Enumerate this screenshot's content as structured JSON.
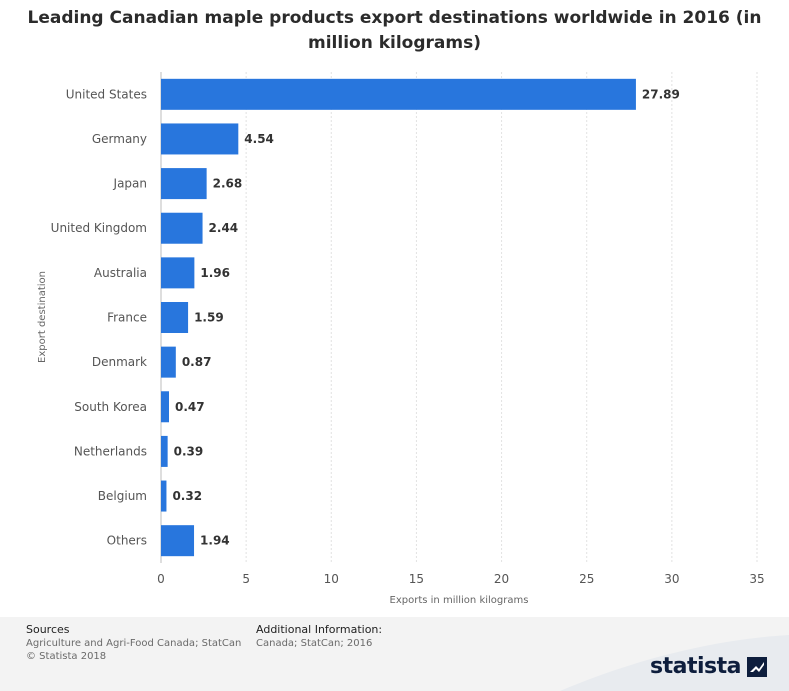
{
  "title_line1": "Leading Canadian maple products export destinations worldwide in 2016 (in",
  "title_line2": "million kilograms)",
  "chart_data": {
    "type": "bar",
    "orientation": "horizontal",
    "title": "Leading Canadian maple products export destinations worldwide in 2016 (in million kilograms)",
    "xlabel": "Exports in million kilograms",
    "ylabel": "Export destination",
    "xlim": [
      0,
      35
    ],
    "xticks": [
      0,
      5,
      10,
      15,
      20,
      25,
      30,
      35
    ],
    "grid": true,
    "categories": [
      "United States",
      "Germany",
      "Japan",
      "United Kingdom",
      "Australia",
      "France",
      "Denmark",
      "South Korea",
      "Netherlands",
      "Belgium",
      "Others"
    ],
    "values": [
      27.89,
      4.54,
      2.68,
      2.44,
      1.96,
      1.59,
      0.87,
      0.47,
      0.39,
      0.32,
      1.94
    ],
    "value_labels": [
      "27.89",
      "4.54",
      "2.68",
      "2.44",
      "1.96",
      "1.59",
      "0.87",
      "0.47",
      "0.39",
      "0.32",
      "1.94"
    ],
    "bar_color": "#2876dd"
  },
  "footer": {
    "sources_header": "Sources",
    "sources_line1": "Agriculture and Agri-Food Canada; StatCan",
    "sources_line2": "© Statista 2018",
    "info_header": "Additional Information:",
    "info_line1": "Canada; StatCan; 2016"
  },
  "brand": {
    "name": "statista",
    "icon": "statista-logo-icon"
  }
}
